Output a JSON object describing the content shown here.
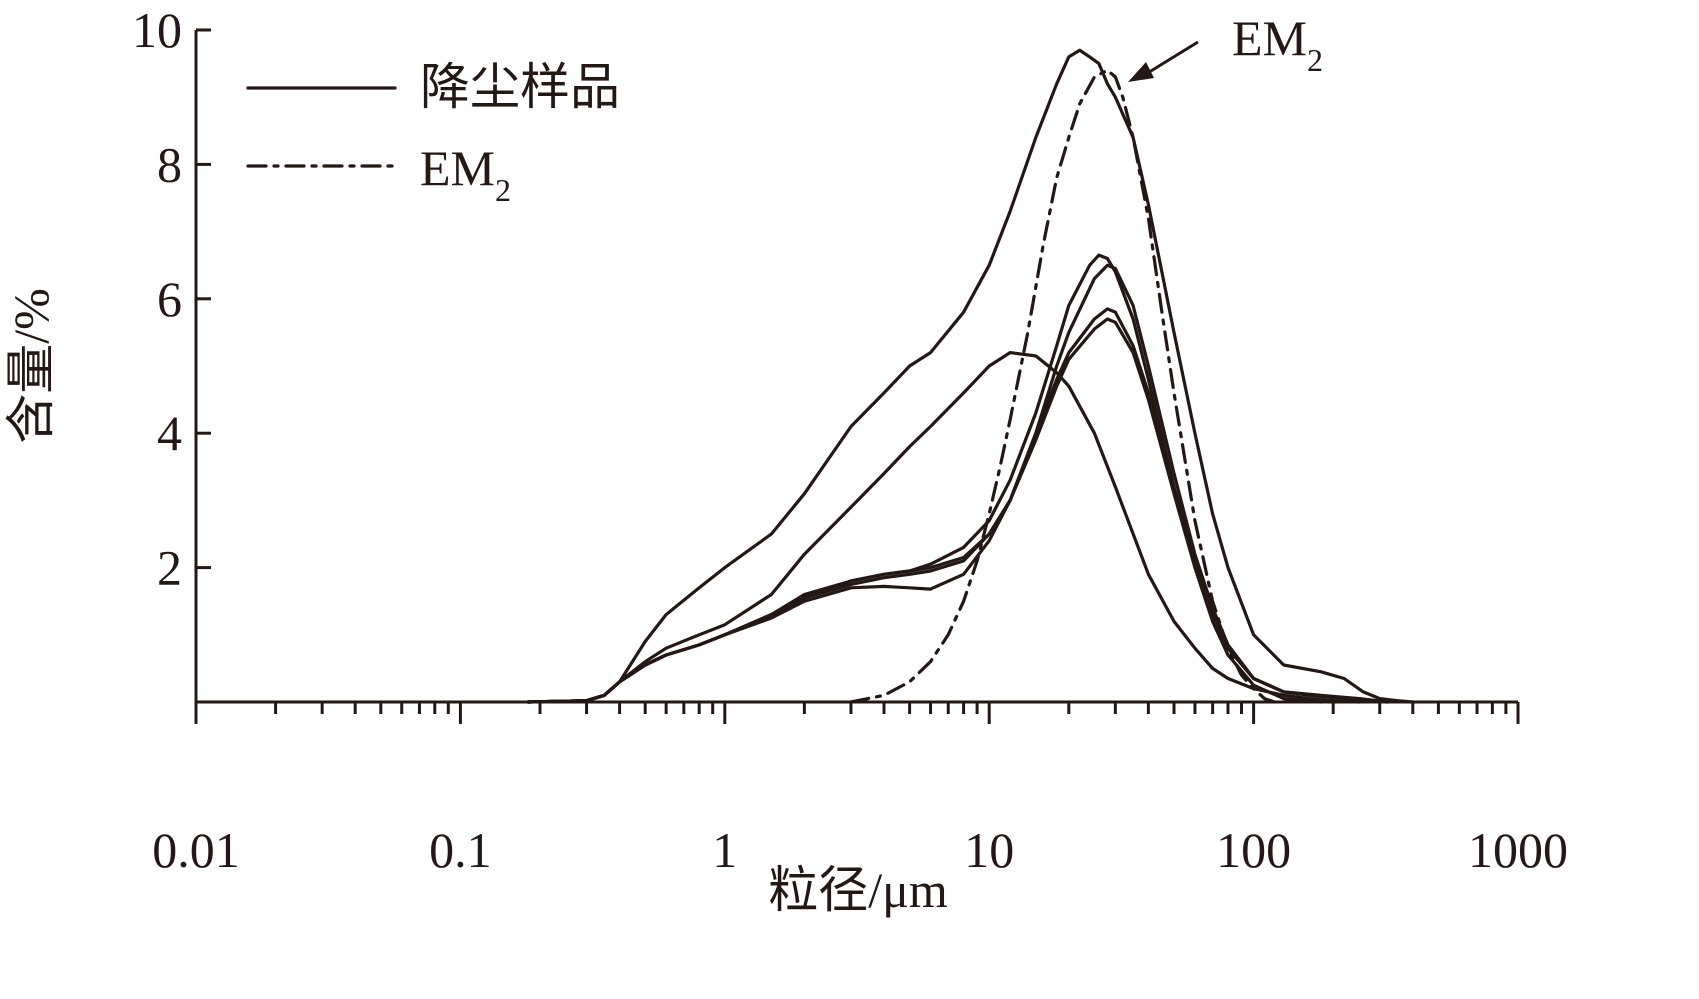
{
  "chart_data": {
    "type": "line",
    "xlabel": "粒径/μm",
    "ylabel": "含量/%",
    "x_scale": "log",
    "xlim": [
      0.01,
      1000
    ],
    "ylim": [
      0,
      10
    ],
    "x_ticks": [
      0.01,
      0.1,
      1,
      10,
      100,
      1000
    ],
    "x_tick_labels": [
      "0.01",
      "0.1",
      "1",
      "10",
      "100",
      "1000"
    ],
    "y_ticks": [
      2,
      4,
      6,
      8,
      10
    ],
    "y_tick_labels": [
      "2",
      "4",
      "6",
      "8",
      "10"
    ],
    "grid": false,
    "legend_position": "top-left",
    "legend": [
      {
        "label": "降尘样品",
        "style": "solid"
      },
      {
        "label": "EM",
        "sub": "2",
        "style": "dash-dot"
      }
    ],
    "annotation": {
      "text": "EM",
      "sub": "2"
    },
    "series": [
      {
        "legend_index": 0,
        "style": "solid",
        "x": [
          0.18,
          0.3,
          0.35,
          0.4,
          0.5,
          0.6,
          0.8,
          1,
          1.5,
          2,
          3,
          4,
          5,
          6,
          8,
          10,
          12,
          15,
          18,
          20,
          22,
          24,
          26,
          28,
          30,
          35,
          40,
          50,
          60,
          70,
          80,
          100,
          130,
          180,
          220,
          260,
          300,
          350,
          400
        ],
        "y": [
          0.0,
          0.02,
          0.1,
          0.3,
          0.9,
          1.3,
          1.7,
          2.0,
          2.5,
          3.1,
          4.1,
          4.6,
          5.0,
          5.2,
          5.8,
          6.5,
          7.3,
          8.4,
          9.2,
          9.6,
          9.7,
          9.6,
          9.5,
          9.2,
          9.0,
          8.4,
          7.4,
          5.5,
          4.0,
          2.8,
          2.0,
          1.0,
          0.55,
          0.45,
          0.35,
          0.15,
          0.05,
          0.02,
          0.0
        ]
      },
      {
        "legend_index": 0,
        "style": "solid",
        "x": [
          0.18,
          0.3,
          0.35,
          0.4,
          0.5,
          0.6,
          0.8,
          1,
          1.5,
          2,
          3,
          4,
          5,
          6,
          8,
          10,
          12,
          15,
          18,
          20,
          25,
          30,
          40,
          50,
          60,
          70,
          80,
          100,
          130,
          180,
          250
        ],
        "y": [
          0.0,
          0.02,
          0.1,
          0.3,
          0.6,
          0.8,
          1.0,
          1.15,
          1.6,
          2.2,
          2.9,
          3.4,
          3.8,
          4.1,
          4.6,
          5.0,
          5.2,
          5.15,
          4.9,
          4.7,
          4.0,
          3.2,
          1.9,
          1.2,
          0.8,
          0.5,
          0.35,
          0.2,
          0.1,
          0.03,
          0.0
        ]
      },
      {
        "legend_index": 0,
        "style": "solid",
        "x": [
          0.18,
          0.3,
          0.35,
          0.4,
          0.5,
          0.6,
          0.8,
          1,
          1.5,
          2,
          3,
          4,
          5,
          6,
          8,
          10,
          12,
          15,
          18,
          20,
          24,
          26,
          28,
          30,
          35,
          40,
          50,
          60,
          70,
          80,
          100,
          130,
          180,
          250,
          320
        ],
        "y": [
          0.0,
          0.02,
          0.1,
          0.3,
          0.55,
          0.7,
          0.85,
          1.0,
          1.3,
          1.6,
          1.8,
          1.9,
          1.95,
          2.05,
          2.3,
          2.7,
          3.3,
          4.3,
          5.3,
          5.9,
          6.5,
          6.65,
          6.6,
          6.4,
          5.7,
          4.8,
          3.2,
          2.1,
          1.3,
          0.8,
          0.35,
          0.15,
          0.08,
          0.05,
          0.0
        ]
      },
      {
        "legend_index": 0,
        "style": "solid",
        "x": [
          0.18,
          0.3,
          0.35,
          0.4,
          0.5,
          0.6,
          0.8,
          1,
          1.5,
          2,
          3,
          4,
          5,
          6,
          8,
          10,
          12,
          15,
          18,
          20,
          25,
          28,
          30,
          35,
          40,
          50,
          60,
          70,
          80,
          100,
          130,
          180,
          250,
          320
        ],
        "y": [
          0.0,
          0.02,
          0.1,
          0.3,
          0.55,
          0.7,
          0.85,
          1.0,
          1.3,
          1.55,
          1.75,
          1.85,
          1.9,
          1.95,
          2.1,
          2.5,
          3.0,
          4.0,
          5.0,
          5.5,
          6.3,
          6.5,
          6.45,
          5.9,
          5.0,
          3.4,
          2.2,
          1.4,
          0.85,
          0.35,
          0.15,
          0.1,
          0.05,
          0.0
        ]
      },
      {
        "legend_index": 0,
        "style": "solid",
        "x": [
          0.18,
          0.3,
          0.35,
          0.4,
          0.5,
          0.6,
          0.8,
          1,
          1.5,
          2,
          3,
          4,
          5,
          6,
          8,
          10,
          12,
          15,
          18,
          20,
          25,
          28,
          30,
          35,
          40,
          50,
          60,
          70,
          80,
          100,
          130,
          180,
          250,
          300
        ],
        "y": [
          0.0,
          0.02,
          0.1,
          0.3,
          0.55,
          0.7,
          0.85,
          1.0,
          1.25,
          1.5,
          1.7,
          1.72,
          1.7,
          1.68,
          1.9,
          2.4,
          3.0,
          4.0,
          4.8,
          5.2,
          5.7,
          5.85,
          5.8,
          5.3,
          4.6,
          3.2,
          2.1,
          1.3,
          0.8,
          0.35,
          0.15,
          0.08,
          0.04,
          0.0
        ]
      },
      {
        "legend_index": 0,
        "style": "solid",
        "x": [
          0.18,
          0.3,
          0.35,
          0.4,
          0.5,
          0.6,
          0.8,
          1,
          1.5,
          2,
          3,
          4,
          5,
          6,
          8,
          10,
          12,
          15,
          18,
          20,
          25,
          28,
          30,
          35,
          40,
          50,
          60,
          70,
          80,
          100,
          130,
          180
        ],
        "y": [
          0.0,
          0.02,
          0.1,
          0.3,
          0.55,
          0.7,
          0.85,
          1.0,
          1.3,
          1.55,
          1.8,
          1.9,
          1.95,
          2.0,
          2.15,
          2.5,
          3.0,
          3.9,
          4.7,
          5.1,
          5.55,
          5.7,
          5.65,
          5.2,
          4.5,
          3.1,
          2.0,
          1.2,
          0.7,
          0.25,
          0.05,
          0.0
        ]
      },
      {
        "legend_index": 1,
        "style": "dash-dot",
        "x": [
          3,
          4,
          5,
          6,
          7,
          8,
          9,
          10,
          11,
          12,
          14,
          16,
          18,
          20,
          22,
          25,
          28,
          30,
          32,
          35,
          40,
          45,
          50,
          55,
          60,
          70,
          80,
          90,
          100,
          110,
          120
        ],
        "y": [
          0.0,
          0.1,
          0.3,
          0.6,
          1.0,
          1.5,
          2.1,
          2.8,
          3.5,
          4.2,
          5.5,
          6.8,
          7.8,
          8.4,
          8.9,
          9.3,
          9.4,
          9.3,
          9.0,
          8.4,
          7.2,
          5.8,
          4.6,
          3.6,
          2.7,
          1.5,
          0.8,
          0.4,
          0.2,
          0.05,
          0.0
        ]
      }
    ]
  }
}
